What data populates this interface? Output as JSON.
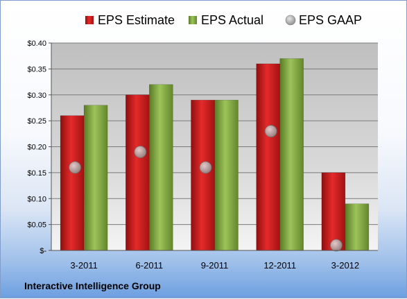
{
  "company": "Interactive Intelligence Group",
  "chart_data": {
    "type": "bar",
    "categories": [
      "3-2011",
      "6-2011",
      "9-2011",
      "12-2011",
      "3-2012"
    ],
    "series": [
      {
        "name": "EPS Estimate",
        "kind": "bar",
        "color": "#cc1a1a",
        "values": [
          0.26,
          0.3,
          0.29,
          0.36,
          0.15
        ]
      },
      {
        "name": "EPS Actual",
        "kind": "bar",
        "color": "#7fa43f",
        "values": [
          0.28,
          0.32,
          0.29,
          0.37,
          0.09
        ]
      },
      {
        "name": "EPS GAAP",
        "kind": "marker",
        "color": "#a9a9a9",
        "values": [
          0.16,
          0.19,
          0.16,
          0.23,
          0.01
        ]
      }
    ],
    "ylim": [
      0,
      0.4
    ],
    "yticks": [
      0,
      0.05,
      0.1,
      0.15,
      0.2,
      0.25,
      0.3,
      0.35,
      0.4
    ],
    "ytick_labels": [
      "$-",
      "$0.05",
      "$0.10",
      "$0.15",
      "$0.20",
      "$0.25",
      "$0.30",
      "$0.35",
      "$0.40"
    ],
    "grid": true,
    "legend": "top"
  }
}
